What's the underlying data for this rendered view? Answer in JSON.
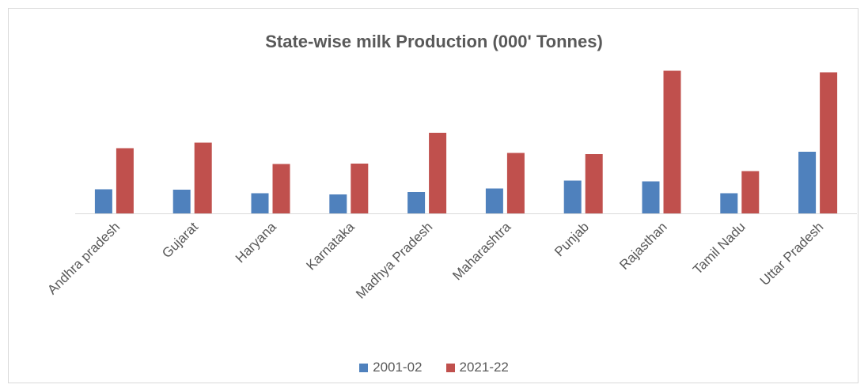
{
  "chart_data": {
    "type": "bar",
    "title": "State-wise milk Production (000' Tonnes)",
    "xlabel": "",
    "ylabel": "",
    "categories": [
      "Andhra pradesh",
      "Gujarat",
      "Haryana",
      "Karnataka",
      "Madhya Pradesh",
      "Maharashtra",
      "Punjab",
      "Rajasthan",
      "Tamil Nadu",
      "Uttar Pradesh"
    ],
    "series": [
      {
        "name": "2001-02",
        "color": "#4f81bd",
        "values": [
          6.1,
          6.0,
          5.1,
          4.8,
          5.4,
          6.3,
          8.3,
          8.1,
          5.1,
          15.6
        ]
      },
      {
        "name": "2021-22",
        "color": "#c0504d",
        "values": [
          16.5,
          17.9,
          12.5,
          12.6,
          20.4,
          15.3,
          15.0,
          36.1,
          10.7,
          35.7
        ]
      }
    ],
    "ylim": [
      0,
      40
    ],
    "y_axis_visible": false,
    "grid": false,
    "legend_position": "bottom"
  }
}
